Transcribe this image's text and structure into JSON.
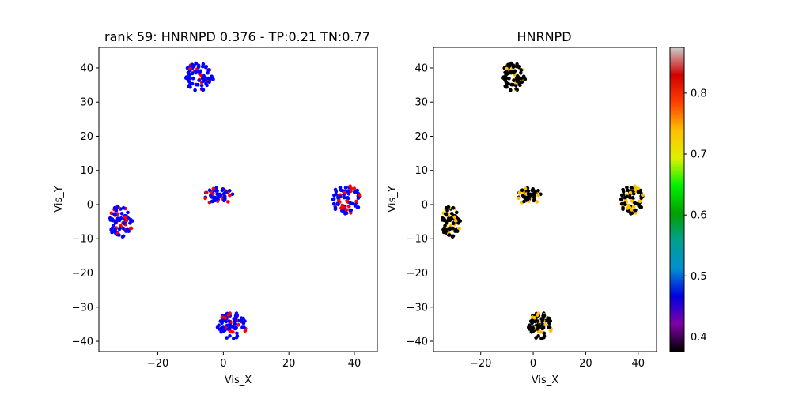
{
  "panels": [
    {
      "title": "rank 59: HNRNPD 0.376 - TP:0.21 TN:0.77",
      "xlabel": "Vis_X",
      "ylabel": "Vis_Y",
      "xlim": [
        -38,
        47
      ],
      "ylim": [
        -43,
        46
      ],
      "xticks": [
        "−20",
        "0",
        "20",
        "40"
      ],
      "xtick_values": [
        -20,
        0,
        20,
        40
      ],
      "yticks": [
        "−40",
        "−30",
        "−20",
        "−10",
        "0",
        "10",
        "20",
        "30",
        "40"
      ],
      "ytick_values": [
        -40,
        -30,
        -20,
        -10,
        0,
        10,
        20,
        30,
        40
      ],
      "point_colors": {
        "primary": "#0000ff",
        "secondary": "#ff0000"
      },
      "secondary_fraction": 0.3
    },
    {
      "title": "HNRNPD",
      "xlabel": "Vis_X",
      "ylabel": "Vis_Y",
      "xlim": [
        -38,
        47
      ],
      "ylim": [
        -43,
        46
      ],
      "xticks": [
        "−20",
        "0",
        "20",
        "40"
      ],
      "xtick_values": [
        -20,
        0,
        20,
        40
      ],
      "yticks": [
        "−40",
        "−30",
        "−20",
        "−10",
        "0",
        "10",
        "20",
        "30",
        "40"
      ],
      "ytick_values": [
        -40,
        -30,
        -20,
        -10,
        0,
        10,
        20,
        30,
        40
      ],
      "point_colors": {
        "primary": "#000000",
        "secondary": "#ffc000"
      },
      "secondary_fraction": 0.3
    }
  ],
  "colorbar": {
    "ticks": [
      "0.4",
      "0.5",
      "0.6",
      "0.7",
      "0.8"
    ],
    "tick_values": [
      0.4,
      0.5,
      0.6,
      0.7,
      0.8
    ],
    "range": [
      0.376,
      0.875
    ],
    "colormap": [
      "#000000",
      "#7f00a6",
      "#0000e0",
      "#0090d0",
      "#00a090",
      "#00a000",
      "#00f000",
      "#e0f000",
      "#ffc000",
      "#ff4000",
      "#d00000",
      "#cccccc"
    ]
  },
  "chart_data": [
    {
      "type": "scatter",
      "title": "rank 59: HNRNPD 0.376 - TP:0.21 TN:0.77",
      "xlabel": "Vis_X",
      "ylabel": "Vis_Y",
      "xlim": [
        -38,
        47
      ],
      "ylim": [
        -43,
        46
      ],
      "clusters": [
        {
          "center": [
            -7.5,
            37.5
          ],
          "rx": 4.5,
          "ry": 4.2,
          "n": 70
        },
        {
          "center": [
            -31.5,
            -5.0
          ],
          "rx": 3.8,
          "ry": 4.5,
          "n": 70
        },
        {
          "center": [
            -1.5,
            2.5
          ],
          "rx": 4.5,
          "ry": 2.5,
          "n": 50
        },
        {
          "center": [
            37.5,
            1.5
          ],
          "rx": 4.5,
          "ry": 4.3,
          "n": 75
        },
        {
          "center": [
            2.5,
            -35.5
          ],
          "rx": 4.5,
          "ry": 4.0,
          "n": 75
        }
      ],
      "grid": false
    },
    {
      "type": "scatter",
      "title": "HNRNPD",
      "xlabel": "Vis_X",
      "ylabel": "Vis_Y",
      "xlim": [
        -38,
        47
      ],
      "ylim": [
        -43,
        46
      ],
      "clusters": [
        {
          "center": [
            -7.5,
            37.5
          ],
          "rx": 4.5,
          "ry": 4.2,
          "n": 70
        },
        {
          "center": [
            -31.5,
            -5.0
          ],
          "rx": 3.8,
          "ry": 4.5,
          "n": 70
        },
        {
          "center": [
            -1.5,
            2.5
          ],
          "rx": 4.5,
          "ry": 2.5,
          "n": 50
        },
        {
          "center": [
            37.5,
            1.5
          ],
          "rx": 4.5,
          "ry": 4.3,
          "n": 75
        },
        {
          "center": [
            2.5,
            -35.5
          ],
          "rx": 4.5,
          "ry": 4.0,
          "n": 75
        }
      ],
      "color_value_range": [
        0.376,
        0.875
      ],
      "grid": false
    }
  ]
}
